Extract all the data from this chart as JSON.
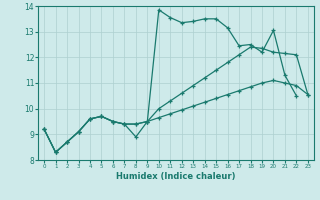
{
  "xlabel": "Humidex (Indice chaleur)",
  "background_color": "#ceeaea",
  "grid_color": "#aed0d0",
  "line_color": "#1a7a6e",
  "xlim": [
    -0.5,
    23.5
  ],
  "ylim": [
    8,
    14
  ],
  "yticks": [
    8,
    9,
    10,
    11,
    12,
    13,
    14
  ],
  "xticks": [
    0,
    1,
    2,
    3,
    4,
    5,
    6,
    7,
    8,
    9,
    10,
    11,
    12,
    13,
    14,
    15,
    16,
    17,
    18,
    19,
    20,
    21,
    22,
    23
  ],
  "series": [
    [
      9.2,
      8.3,
      8.7,
      9.1,
      9.6,
      9.7,
      9.5,
      9.4,
      8.9,
      9.5,
      13.85,
      13.55,
      13.35,
      13.4,
      13.5,
      13.5,
      13.15,
      12.45,
      12.5,
      12.2,
      13.05,
      11.3,
      10.5,
      null
    ],
    [
      9.2,
      8.3,
      8.7,
      9.1,
      9.6,
      9.7,
      9.5,
      9.4,
      9.4,
      9.5,
      10.0,
      10.3,
      10.6,
      10.9,
      11.2,
      11.5,
      11.8,
      12.1,
      12.4,
      12.35,
      12.2,
      12.15,
      12.1,
      10.55
    ],
    [
      9.2,
      8.3,
      8.7,
      9.1,
      9.6,
      9.7,
      9.5,
      9.4,
      9.4,
      9.5,
      9.65,
      9.8,
      9.95,
      10.1,
      10.25,
      10.4,
      10.55,
      10.7,
      10.85,
      11.0,
      11.1,
      11.0,
      10.9,
      10.55
    ]
  ]
}
